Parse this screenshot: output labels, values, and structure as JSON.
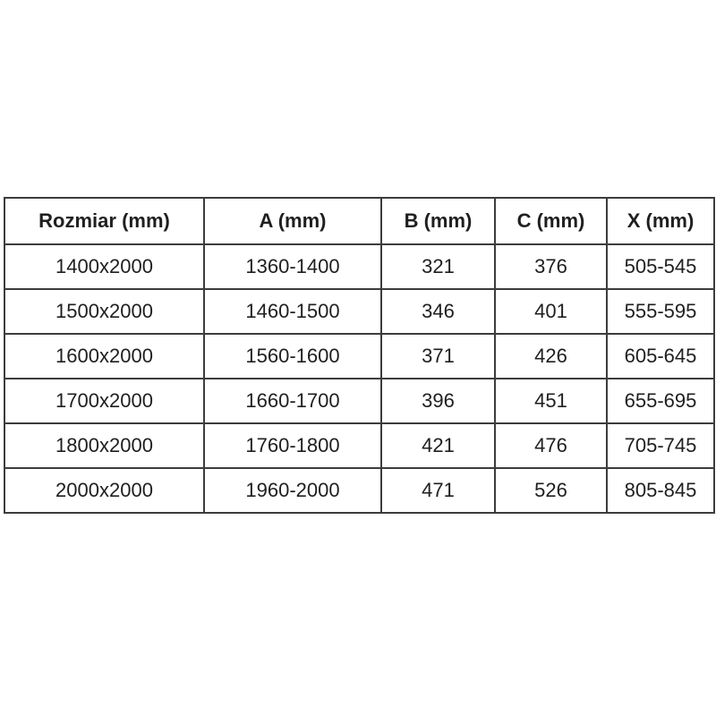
{
  "chart_data": {
    "type": "table",
    "title": "",
    "columns": [
      "Rozmiar (mm)",
      "A (mm)",
      "B (mm)",
      "C (mm)",
      "X (mm)"
    ],
    "rows": [
      [
        "1400x2000",
        "1360-1400",
        "321",
        "376",
        "505-545"
      ],
      [
        "1500x2000",
        "1460-1500",
        "346",
        "401",
        "555-595"
      ],
      [
        "1600x2000",
        "1560-1600",
        "371",
        "426",
        "605-645"
      ],
      [
        "1700x2000",
        "1660-1700",
        "396",
        "451",
        "655-695"
      ],
      [
        "1800x2000",
        "1760-1800",
        "421",
        "476",
        "705-745"
      ],
      [
        "2000x2000",
        "1960-2000",
        "471",
        "526",
        "805-845"
      ]
    ],
    "layout": {
      "grid": true,
      "header_bold": true
    }
  },
  "colors": {
    "border": "#3c3c3c",
    "text": "#1f1f1f",
    "background": "#ffffff"
  }
}
